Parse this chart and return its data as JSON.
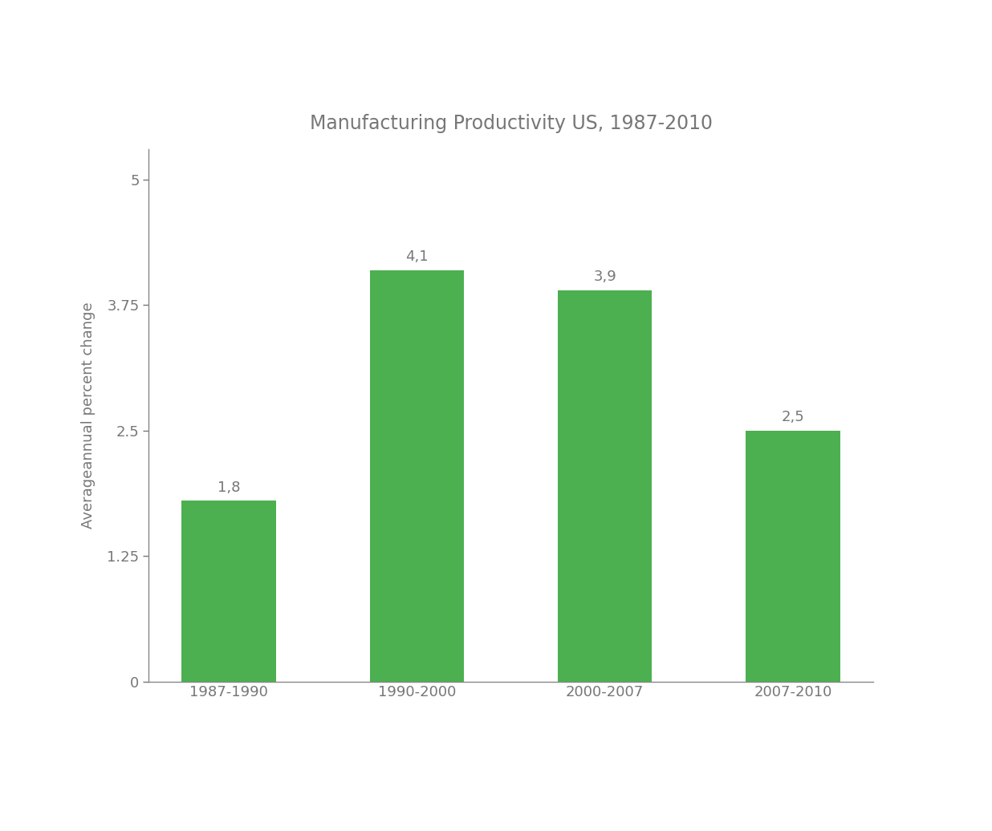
{
  "title": "Manufacturing Productivity US, 1987-2010",
  "categories": [
    "1987-1990",
    "1990-2000",
    "2000-2007",
    "2007-2010"
  ],
  "values": [
    1.8,
    4.1,
    3.9,
    2.5
  ],
  "bar_labels": [
    "1,8",
    "4,1",
    "3,9",
    "2,5"
  ],
  "bar_color": "#4caf50",
  "ylabel": "Averageannual percent change",
  "ylim": [
    0,
    5.3
  ],
  "yticks": [
    0,
    1.25,
    2.5,
    3.75,
    5
  ],
  "ytick_labels": [
    "0",
    "1.25",
    "2.5",
    "3.75",
    "5"
  ],
  "title_color": "#777777",
  "label_color": "#777777",
  "tick_color": "#777777",
  "spine_color": "#888888",
  "background_color": "#ffffff",
  "title_fontsize": 17,
  "label_fontsize": 13,
  "tick_fontsize": 13,
  "bar_label_fontsize": 13
}
